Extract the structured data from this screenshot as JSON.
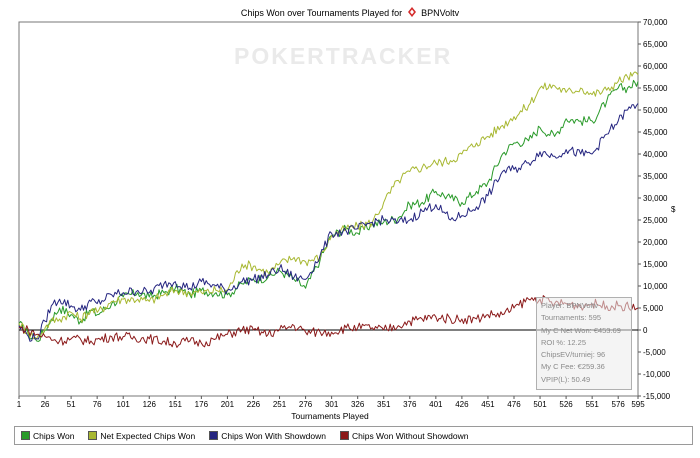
{
  "title": {
    "text_before": "Chips Won over Tournaments Played for",
    "player": "BPNVoltv"
  },
  "watermark": "POKERTRACKER",
  "chart_data": {
    "type": "line",
    "title": "Chips Won over Tournaments Played for BPNVoltv",
    "xlabel": "Tournaments Played",
    "ylabel": "$",
    "xlim": [
      1,
      595
    ],
    "ylim": [
      -15000,
      70000
    ],
    "x_ticks": [
      1,
      26,
      51,
      76,
      101,
      126,
      151,
      176,
      201,
      226,
      251,
      276,
      301,
      326,
      351,
      376,
      401,
      426,
      451,
      476,
      501,
      526,
      551,
      576,
      595
    ],
    "y_ticks": [
      -15000,
      -10000,
      -5000,
      0,
      5000,
      10000,
      15000,
      20000,
      25000,
      30000,
      35000,
      40000,
      45000,
      50000,
      55000,
      60000,
      65000,
      70000
    ],
    "y_tick_labels": [
      "-15,000",
      "-10,000",
      "-5,000",
      "0",
      "5,000",
      "10,000",
      "15,000",
      "20,000",
      "25,000",
      "30,000",
      "35,000",
      "40,000",
      "45,000",
      "50,000",
      "55,000",
      "60,000",
      "65,000",
      "70,000"
    ],
    "series": [
      {
        "name": "Chips Won",
        "color": "#2a9a2a",
        "points": [
          [
            1,
            1500
          ],
          [
            10,
            -1000
          ],
          [
            18,
            -2500
          ],
          [
            26,
            0
          ],
          [
            32,
            2500
          ],
          [
            40,
            5000
          ],
          [
            51,
            3500
          ],
          [
            60,
            2000
          ],
          [
            70,
            4500
          ],
          [
            76,
            3500
          ],
          [
            90,
            6000
          ],
          [
            101,
            7500
          ],
          [
            115,
            8500
          ],
          [
            126,
            7500
          ],
          [
            140,
            8500
          ],
          [
            151,
            9500
          ],
          [
            165,
            8000
          ],
          [
            176,
            9000
          ],
          [
            190,
            8500
          ],
          [
            201,
            8000
          ],
          [
            215,
            10500
          ],
          [
            226,
            11500
          ],
          [
            240,
            12000
          ],
          [
            251,
            13500
          ],
          [
            265,
            11500
          ],
          [
            276,
            9500
          ],
          [
            290,
            16000
          ],
          [
            301,
            21500
          ],
          [
            315,
            23000
          ],
          [
            326,
            22000
          ],
          [
            340,
            24000
          ],
          [
            351,
            24500
          ],
          [
            365,
            25500
          ],
          [
            376,
            28500
          ],
          [
            388,
            29000
          ],
          [
            401,
            31500
          ],
          [
            415,
            30000
          ],
          [
            426,
            29000
          ],
          [
            440,
            31500
          ],
          [
            451,
            33500
          ],
          [
            465,
            40000
          ],
          [
            476,
            42500
          ],
          [
            490,
            43000
          ],
          [
            501,
            46000
          ],
          [
            515,
            44000
          ],
          [
            526,
            48000
          ],
          [
            540,
            47500
          ],
          [
            551,
            47500
          ],
          [
            565,
            52000
          ],
          [
            576,
            55000
          ],
          [
            585,
            55000
          ],
          [
            595,
            56500
          ]
        ]
      },
      {
        "name": "Net Expected Chips Won",
        "color": "#a8b832",
        "points": [
          [
            1,
            1500
          ],
          [
            10,
            -500
          ],
          [
            18,
            -2000
          ],
          [
            26,
            500
          ],
          [
            32,
            2000
          ],
          [
            40,
            2500
          ],
          [
            51,
            4000
          ],
          [
            60,
            2500
          ],
          [
            70,
            4500
          ],
          [
            76,
            4000
          ],
          [
            90,
            6500
          ],
          [
            101,
            7000
          ],
          [
            115,
            7000
          ],
          [
            126,
            6500
          ],
          [
            140,
            8000
          ],
          [
            151,
            9000
          ],
          [
            165,
            8500
          ],
          [
            176,
            8500
          ],
          [
            190,
            9000
          ],
          [
            201,
            9000
          ],
          [
            215,
            15000
          ],
          [
            226,
            14500
          ],
          [
            240,
            13000
          ],
          [
            251,
            15000
          ],
          [
            265,
            16500
          ],
          [
            276,
            15500
          ],
          [
            290,
            16500
          ],
          [
            301,
            21500
          ],
          [
            315,
            23000
          ],
          [
            326,
            23500
          ],
          [
            340,
            24500
          ],
          [
            351,
            29000
          ],
          [
            365,
            34000
          ],
          [
            376,
            36000
          ],
          [
            388,
            37000
          ],
          [
            401,
            38000
          ],
          [
            415,
            38500
          ],
          [
            426,
            40000
          ],
          [
            440,
            42500
          ],
          [
            451,
            44000
          ],
          [
            465,
            46500
          ],
          [
            476,
            48500
          ],
          [
            490,
            51000
          ],
          [
            501,
            55000
          ],
          [
            515,
            55500
          ],
          [
            526,
            54000
          ],
          [
            540,
            55000
          ],
          [
            551,
            53500
          ],
          [
            565,
            54500
          ],
          [
            576,
            56500
          ],
          [
            585,
            57500
          ],
          [
            595,
            58000
          ]
        ]
      },
      {
        "name": "Chips Won With Showdown",
        "color": "#252580",
        "points": [
          [
            1,
            1000
          ],
          [
            10,
            -1500
          ],
          [
            18,
            -2000
          ],
          [
            26,
            2000
          ],
          [
            32,
            5500
          ],
          [
            40,
            7000
          ],
          [
            51,
            5500
          ],
          [
            60,
            4500
          ],
          [
            70,
            6500
          ],
          [
            76,
            6000
          ],
          [
            90,
            8000
          ],
          [
            101,
            8500
          ],
          [
            115,
            9000
          ],
          [
            126,
            8500
          ],
          [
            140,
            10500
          ],
          [
            151,
            11000
          ],
          [
            165,
            9500
          ],
          [
            176,
            11000
          ],
          [
            190,
            10000
          ],
          [
            201,
            9000
          ],
          [
            215,
            11000
          ],
          [
            226,
            11500
          ],
          [
            240,
            12500
          ],
          [
            251,
            14000
          ],
          [
            265,
            12000
          ],
          [
            276,
            11500
          ],
          [
            290,
            17000
          ],
          [
            301,
            22000
          ],
          [
            315,
            22500
          ],
          [
            326,
            23000
          ],
          [
            340,
            24500
          ],
          [
            351,
            25000
          ],
          [
            365,
            24500
          ],
          [
            376,
            25000
          ],
          [
            388,
            27000
          ],
          [
            401,
            28500
          ],
          [
            415,
            25000
          ],
          [
            426,
            26000
          ],
          [
            440,
            28000
          ],
          [
            451,
            30500
          ],
          [
            465,
            36000
          ],
          [
            476,
            36500
          ],
          [
            490,
            38000
          ],
          [
            501,
            40500
          ],
          [
            515,
            39500
          ],
          [
            526,
            41000
          ],
          [
            540,
            40000
          ],
          [
            551,
            40000
          ],
          [
            565,
            44500
          ],
          [
            576,
            47500
          ],
          [
            585,
            50000
          ],
          [
            595,
            51500
          ]
        ]
      },
      {
        "name": "Chips Won Without Showdown",
        "color": "#8b1a1a",
        "points": [
          [
            1,
            500
          ],
          [
            10,
            0
          ],
          [
            18,
            -1000
          ],
          [
            26,
            -1500
          ],
          [
            40,
            -2500
          ],
          [
            51,
            -2000
          ],
          [
            70,
            -2500
          ],
          [
            90,
            -1500
          ],
          [
            101,
            -1500
          ],
          [
            126,
            -2000
          ],
          [
            151,
            -3000
          ],
          [
            165,
            -2500
          ],
          [
            176,
            -3000
          ],
          [
            190,
            -2000
          ],
          [
            201,
            -1000
          ],
          [
            215,
            0
          ],
          [
            226,
            0
          ],
          [
            240,
            -1000
          ],
          [
            251,
            0
          ],
          [
            265,
            1000
          ],
          [
            276,
            -500
          ],
          [
            290,
            -500
          ],
          [
            301,
            -500
          ],
          [
            315,
            500
          ],
          [
            326,
            500
          ],
          [
            340,
            500
          ],
          [
            351,
            0
          ],
          [
            365,
            1000
          ],
          [
            376,
            2000
          ],
          [
            401,
            3000
          ],
          [
            415,
            2500
          ],
          [
            426,
            2500
          ],
          [
            440,
            2500
          ],
          [
            451,
            3500
          ],
          [
            465,
            3500
          ],
          [
            476,
            5000
          ],
          [
            490,
            7000
          ],
          [
            501,
            7000
          ],
          [
            515,
            6000
          ],
          [
            526,
            6000
          ],
          [
            540,
            5500
          ],
          [
            551,
            6000
          ],
          [
            565,
            5500
          ],
          [
            576,
            5500
          ],
          [
            595,
            5000
          ]
        ]
      }
    ],
    "zero_line": true,
    "grid": false,
    "legend_position": "bottom"
  },
  "legend": [
    {
      "label": "Chips Won",
      "color": "#2a9a2a"
    },
    {
      "label": "Net Expected Chips Won",
      "color": "#a8b832"
    },
    {
      "label": "Chips Won With Showdown",
      "color": "#252580"
    },
    {
      "label": "Chips Won Without Showdown",
      "color": "#8b1a1a"
    }
  ],
  "infobox": {
    "player": "Player: BPNVoltv",
    "tournaments": "Tournaments: 595",
    "net_won": "My C Net Won: €453.69",
    "roi": "ROI %: 12.25",
    "chipsev": "ChipsEV/turniej: 96",
    "fee": "My C Fee: €259.36",
    "vpip": "VPIP(L): 50.49"
  }
}
